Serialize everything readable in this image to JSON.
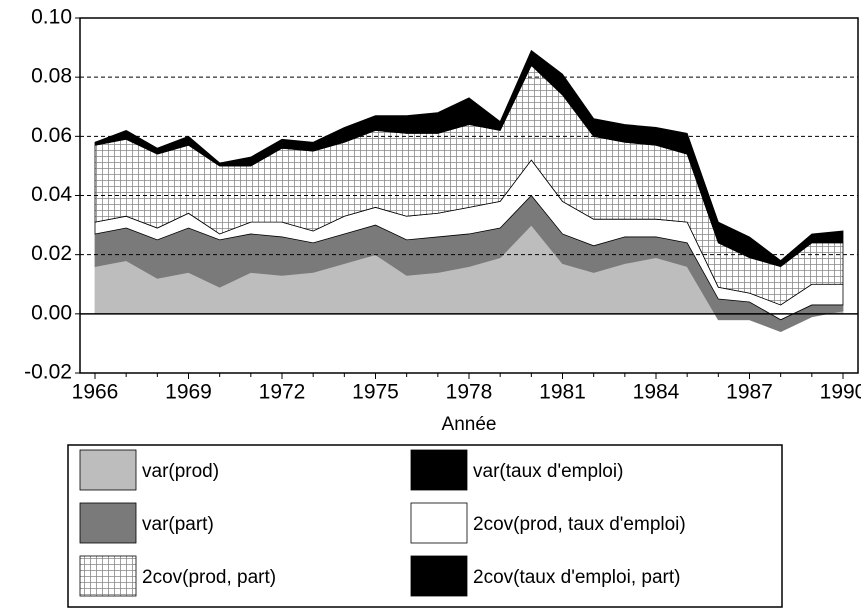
{
  "chart_data": {
    "type": "stacked_area",
    "x_label": "Année",
    "x": [
      1966,
      1967,
      1968,
      1969,
      1970,
      1971,
      1972,
      1973,
      1974,
      1975,
      1976,
      1977,
      1978,
      1979,
      1980,
      1981,
      1982,
      1983,
      1984,
      1985,
      1986,
      1987,
      1988,
      1989,
      1990
    ],
    "xlim": [
      1966,
      1990
    ],
    "xticks": [
      1966,
      1969,
      1972,
      1975,
      1978,
      1981,
      1984,
      1987,
      1990
    ],
    "ylim": [
      -0.02,
      0.1
    ],
    "yticks": [
      -0.02,
      {
        "value": 0,
        "label": "0.00"
      },
      0.02,
      0.04,
      0.06,
      0.08,
      {
        "value": 0.1,
        "label": "0.10"
      }
    ],
    "grid": true,
    "series": [
      {
        "name": "var(prod)",
        "color": "#bdbdbd",
        "values": [
          0.016,
          0.018,
          0.012,
          0.014,
          0.009,
          0.014,
          0.013,
          0.014,
          0.017,
          0.02,
          0.013,
          0.014,
          0.016,
          0.019,
          0.03,
          0.017,
          0.014,
          0.017,
          0.019,
          0.016,
          -0.002,
          -0.002,
          -0.006,
          -0.001,
          0.001
        ]
      },
      {
        "name": "var(part)",
        "color": "#7a7a7a",
        "values": [
          0.011,
          0.011,
          0.013,
          0.015,
          0.016,
          0.013,
          0.013,
          0.01,
          0.01,
          0.01,
          0.012,
          0.012,
          0.011,
          0.01,
          0.01,
          0.01,
          0.009,
          0.009,
          0.007,
          0.008,
          0.007,
          0.006,
          0.004,
          0.004,
          0.002
        ]
      },
      {
        "name": "2cov(prod, taux d'emploi)",
        "color": "#ffffff",
        "values": [
          0.004,
          0.004,
          0.004,
          0.005,
          0.002,
          0.004,
          0.005,
          0.004,
          0.006,
          0.006,
          0.008,
          0.008,
          0.009,
          0.009,
          0.012,
          0.011,
          0.009,
          0.006,
          0.006,
          0.007,
          0.004,
          0.003,
          0.005,
          0.007,
          0.007
        ]
      },
      {
        "name": "2cov(prod, part)",
        "color": "#ffffff",
        "hatch": "grid",
        "values": [
          0.026,
          0.026,
          0.025,
          0.023,
          0.023,
          0.019,
          0.025,
          0.027,
          0.025,
          0.026,
          0.028,
          0.027,
          0.028,
          0.024,
          0.032,
          0.036,
          0.028,
          0.026,
          0.025,
          0.023,
          0.015,
          0.012,
          0.013,
          0.014,
          0.014
        ]
      },
      {
        "name": "var(taux d'emploi)",
        "color": "#000000",
        "values": [
          0.001,
          0.002,
          0.001,
          0.002,
          0.001,
          0.002,
          0.002,
          0.002,
          0.003,
          0.003,
          0.004,
          0.004,
          0.005,
          0.002,
          0.003,
          0.004,
          0.004,
          0.004,
          0.004,
          0.004,
          0.004,
          0.004,
          0.001,
          0.002,
          0.002
        ]
      },
      {
        "name": "2cov(taux d'emploi, part)",
        "color": "#000000",
        "values": [
          0,
          0.001,
          0.001,
          0.001,
          0,
          0.001,
          0.001,
          0.001,
          0.002,
          0.002,
          0.002,
          0.003,
          0.004,
          0.001,
          0.002,
          0.003,
          0.002,
          0.002,
          0.002,
          0.003,
          0.003,
          0.003,
          0.001,
          0.001,
          0.002
        ]
      }
    ]
  }
}
